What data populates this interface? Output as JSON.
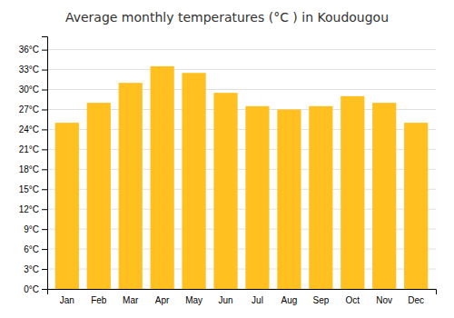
{
  "chart_data": {
    "type": "bar",
    "title": "Average monthly temperatures (°C ) in Koudougou",
    "categories": [
      "Jan",
      "Feb",
      "Mar",
      "Apr",
      "May",
      "Jun",
      "Jul",
      "Aug",
      "Sep",
      "Oct",
      "Nov",
      "Dec"
    ],
    "values": [
      25.0,
      28.0,
      31.0,
      33.5,
      32.5,
      29.5,
      27.5,
      27.0,
      27.5,
      29.0,
      28.0,
      25.0
    ],
    "color": "#FFC020",
    "ylim": [
      0,
      38
    ],
    "yticks": [
      {
        "value": 0,
        "label": "0°C"
      },
      {
        "value": 3,
        "label": "3°C"
      },
      {
        "value": 6,
        "label": "6°C"
      },
      {
        "value": 9,
        "label": "9°C"
      },
      {
        "value": 12,
        "label": "12°C"
      },
      {
        "value": 15,
        "label": "15°C"
      },
      {
        "value": 18,
        "label": "18°C"
      },
      {
        "value": 21,
        "label": "21°C"
      },
      {
        "value": 24,
        "label": "24°C"
      },
      {
        "value": 27,
        "label": "27°C"
      },
      {
        "value": 30,
        "label": "30°C"
      },
      {
        "value": 33,
        "label": "33°C"
      },
      {
        "value": 36,
        "label": "36°C"
      }
    ],
    "grid": true
  }
}
